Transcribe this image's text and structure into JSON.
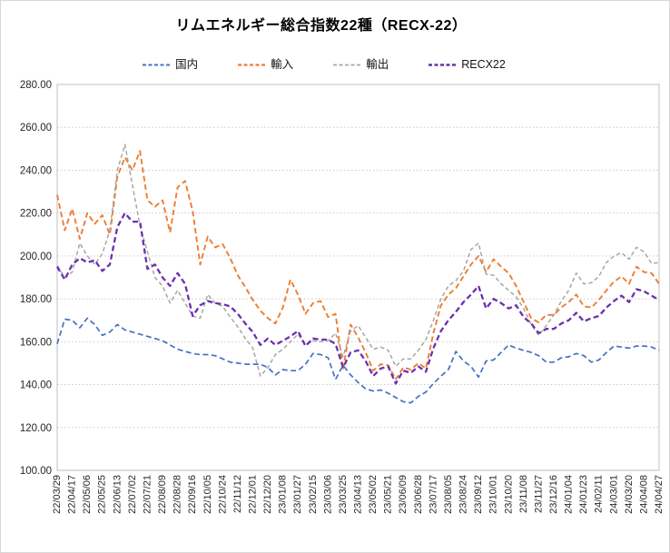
{
  "title": "リムエネルギー総合指数22種（RECX-22）",
  "chart_data": {
    "type": "line",
    "title": "リムエネルギー総合指数22種（RECX-22）",
    "xlabel": "",
    "ylabel": "",
    "ylim": [
      100,
      280
    ],
    "y_tick_step": 20,
    "y_tick_labels": [
      "280.00",
      "260.00",
      "240.00",
      "220.00",
      "200.00",
      "180.00",
      "160.00",
      "140.00",
      "120.00",
      "100.00"
    ],
    "grid": "horizontal-dotted",
    "legend_position": "top",
    "line_style": "dashed",
    "x_labels": [
      "22/03/29",
      "22/04/17",
      "22/05/06",
      "22/05/25",
      "22/06/13",
      "22/07/02",
      "22/07/21",
      "22/08/09",
      "22/08/28",
      "22/09/16",
      "22/10/05",
      "22/10/24",
      "22/11/12",
      "22/12/01",
      "22/12/20",
      "23/01/08",
      "23/01/27",
      "23/02/15",
      "23/03/06",
      "23/03/25",
      "23/04/13",
      "23/05/02",
      "23/05/21",
      "23/06/09",
      "23/06/28",
      "23/07/17",
      "23/08/05",
      "23/08/24",
      "23/09/12",
      "23/10/01",
      "23/10/20",
      "23/11/08",
      "23/11/27",
      "23/12/16",
      "24/01/04",
      "24/01/23",
      "24/02/11",
      "24/03/01",
      "24/03/20",
      "24/04/08",
      "24/04/27"
    ],
    "points_per_label_interval": 2,
    "series": [
      {
        "name": "国内",
        "color": "#4472C4",
        "width": 1.7,
        "dash": "6 3.5",
        "values": [
          159,
          170.5,
          170,
          166.5,
          171,
          168,
          163,
          164.5,
          168,
          165.5,
          164.5,
          163.5,
          162.5,
          161.5,
          160.5,
          158.5,
          156.5,
          155.5,
          154.5,
          154,
          154,
          153.5,
          152,
          150.5,
          150,
          149.5,
          149.5,
          149.5,
          148,
          144.5,
          147,
          146.5,
          146.5,
          149.5,
          154.5,
          154,
          152.5,
          142.5,
          149,
          144.5,
          141,
          138,
          137,
          137.5,
          136,
          134,
          132,
          131.5,
          134.5,
          136.5,
          140.5,
          144,
          147,
          155.5,
          151,
          148.5,
          143.5,
          151,
          151.5,
          155,
          158.5,
          157,
          156,
          155,
          153.5,
          150.5,
          150.5,
          152.5,
          153,
          154.5,
          153.5,
          150.5,
          151.5,
          155,
          158,
          157.5,
          157,
          158,
          158,
          157.5,
          156
        ]
      },
      {
        "name": "輸入",
        "color": "#ED7D31",
        "width": 1.9,
        "dash": "6 3.5",
        "values": [
          228.5,
          212,
          222,
          208,
          220,
          215,
          219,
          210,
          237,
          246,
          240,
          249,
          226,
          223,
          226,
          211,
          232,
          235,
          221,
          196,
          209,
          204,
          205.5,
          199,
          191,
          185.5,
          179.5,
          174.5,
          171,
          168.5,
          176,
          189,
          182,
          173,
          178,
          179,
          171.5,
          173,
          147,
          168,
          162,
          155,
          146.5,
          149.5,
          149,
          142.5,
          148,
          147,
          150,
          147.5,
          164,
          177,
          182,
          185,
          190.5,
          196,
          200,
          192.5,
          198.5,
          195,
          192,
          186,
          178.5,
          171,
          169,
          172.5,
          172.5,
          176,
          178.5,
          182,
          176.5,
          176,
          179.5,
          184,
          188,
          190.5,
          187,
          195,
          192.5,
          192,
          187
        ]
      },
      {
        "name": "輸出",
        "color": "#A6A6A6",
        "width": 1.5,
        "dash": "4.5 3",
        "values": [
          195.5,
          190,
          192.5,
          206,
          200,
          196,
          201,
          212,
          240,
          252,
          233,
          214,
          202,
          190,
          186,
          178,
          184,
          178,
          172,
          171,
          182,
          178,
          176.5,
          171.5,
          167,
          161.5,
          157,
          144,
          148,
          154,
          156.5,
          160,
          163.5,
          158.5,
          160.5,
          160,
          160.5,
          164,
          153,
          165,
          167.5,
          162,
          156.5,
          157.5,
          156,
          148.5,
          152,
          152,
          156,
          161,
          170,
          180,
          186,
          188.5,
          193,
          203,
          206,
          191.5,
          191,
          187,
          184,
          181,
          175.5,
          168,
          163,
          167.5,
          172.5,
          179,
          184,
          192,
          187,
          187.5,
          190.5,
          197,
          200,
          201.5,
          198.5,
          204,
          202,
          196.5,
          197
        ]
      },
      {
        "name": "RECX22",
        "color": "#6B30B0",
        "width": 2.3,
        "dash": "6 3.5",
        "values": [
          195,
          189,
          196,
          199,
          197,
          198,
          193,
          196,
          213.5,
          220,
          216,
          216,
          194,
          196,
          190,
          186,
          192,
          187,
          172,
          177,
          179,
          178,
          177.5,
          176.5,
          173,
          168.5,
          164.5,
          158.5,
          161.5,
          158.5,
          160.5,
          162.5,
          165,
          158,
          161.5,
          161,
          161,
          159,
          148,
          155,
          156,
          151,
          144,
          147.5,
          148.5,
          140.5,
          146.5,
          145.5,
          148.5,
          146,
          157,
          165,
          170,
          174,
          178.5,
          182,
          186,
          175.5,
          180,
          178,
          175.5,
          177,
          171.5,
          168.5,
          164,
          166,
          166,
          168.5,
          170,
          173.5,
          169.5,
          171,
          172,
          176,
          179,
          181.5,
          178.5,
          184.5,
          183.5,
          181.5,
          179.5
        ]
      }
    ]
  }
}
